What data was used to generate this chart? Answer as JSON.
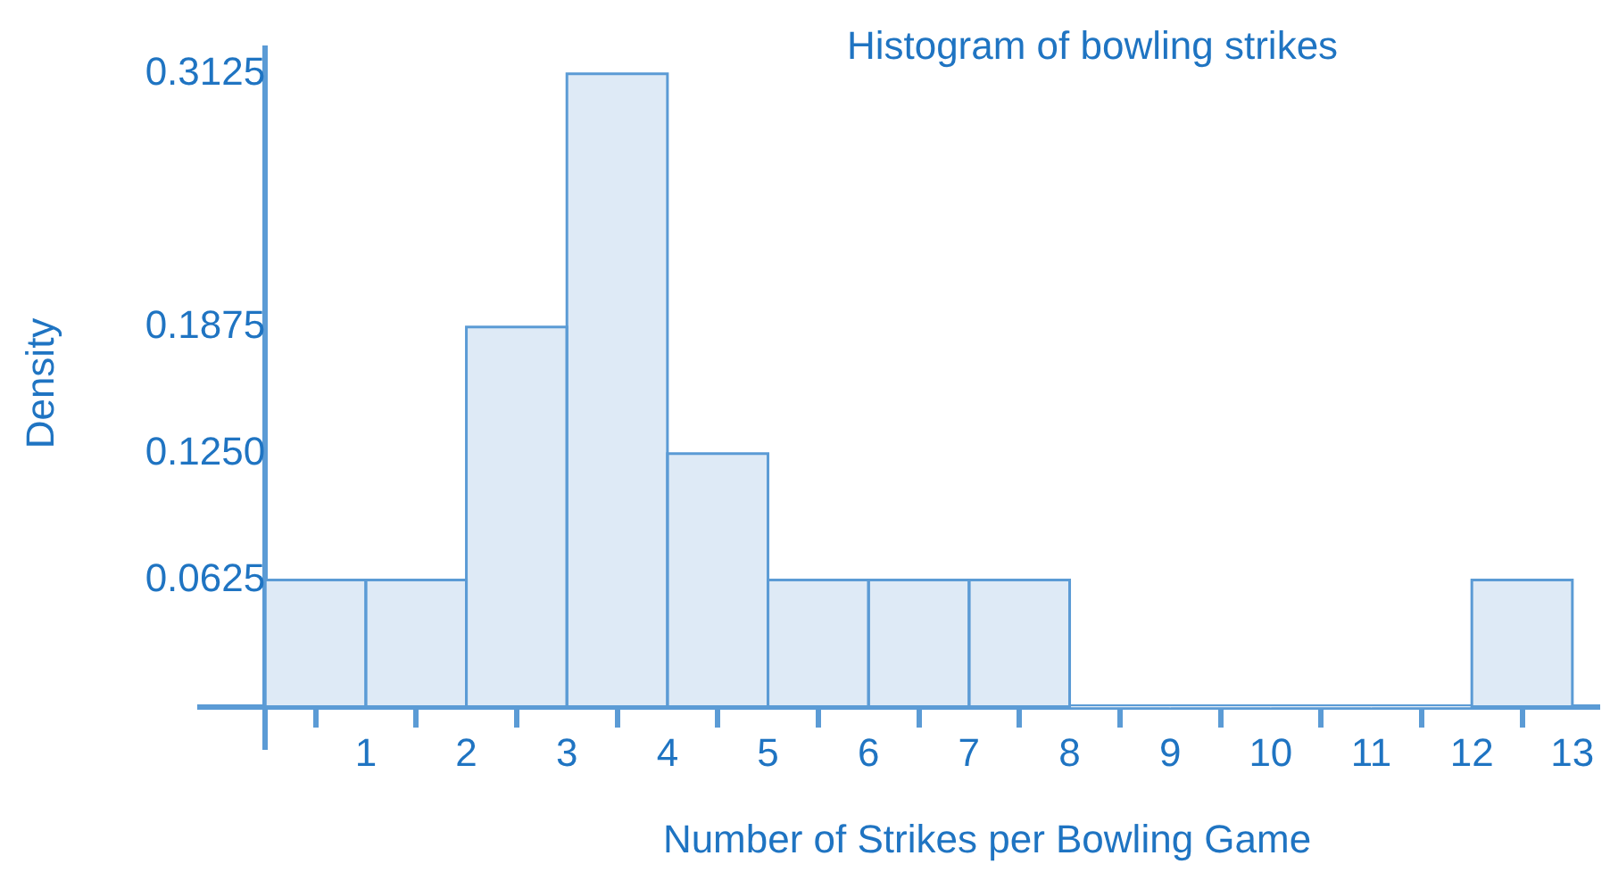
{
  "chart_data": {
    "type": "histogram",
    "title": "Histogram of bowling strikes",
    "xlabel": "Number of Strikes per Bowling Game",
    "ylabel": "Density",
    "bins": [
      0,
      1,
      2,
      3,
      4,
      5,
      6,
      7,
      8,
      9,
      10,
      11,
      12,
      13
    ],
    "values": [
      0.0625,
      0.0625,
      0.1875,
      0.3125,
      0.125,
      0.0625,
      0.0625,
      0.0625,
      0,
      0,
      0,
      0,
      0.0625
    ],
    "color": "#deeaf6",
    "xlim": [
      -0.65,
      13.25
    ],
    "ylim": [
      -0.02,
      0.325
    ],
    "xticks": [
      1,
      2,
      3,
      4,
      5,
      6,
      7,
      8,
      9,
      10,
      11,
      12,
      13
    ],
    "yticks": [
      0.0625,
      {
        "value": 0.125,
        "label": "0.1250"
      },
      0.1875,
      0.3125
    ],
    "grid": false,
    "legend": false
  }
}
